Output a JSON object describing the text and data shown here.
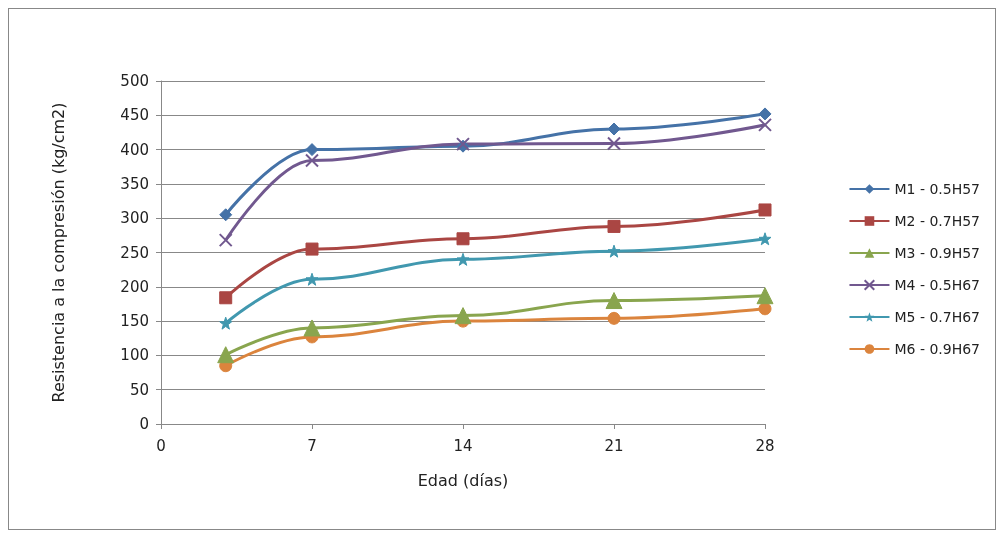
{
  "chart_data": {
    "type": "line",
    "xlabel": "Edad (días)",
    "ylabel": "Resistencia a la compresión (kg/cm2)",
    "x": [
      3,
      7,
      14,
      21,
      28
    ],
    "xlim": [
      0,
      28
    ],
    "xticks": [
      0,
      7,
      14,
      21,
      28
    ],
    "ylim": [
      0,
      500
    ],
    "yticks": [
      0,
      50,
      100,
      150,
      200,
      250,
      300,
      350,
      400,
      450,
      500
    ],
    "grid": "y",
    "legend": "right",
    "series": [
      {
        "name": "M1 - 0.5H57",
        "color": "#4572a7",
        "marker": "diamond",
        "values": [
          305,
          400,
          405,
          430,
          452
        ]
      },
      {
        "name": "M2 - 0.7H57",
        "color": "#aa4643",
        "marker": "square",
        "values": [
          184,
          255,
          270,
          288,
          312
        ]
      },
      {
        "name": "M3 - 0.9H57",
        "color": "#89a54e",
        "marker": "triangle",
        "values": [
          101,
          140,
          158,
          180,
          187
        ]
      },
      {
        "name": "M4 - 0.5H67",
        "color": "#71588f",
        "marker": "cross",
        "values": [
          268,
          384,
          408,
          409,
          436
        ]
      },
      {
        "name": "M5 - 0.7H67",
        "color": "#4198af",
        "marker": "star",
        "values": [
          147,
          211,
          240,
          252,
          270
        ]
      },
      {
        "name": "M6 - 0.9H67",
        "color": "#db843d",
        "marker": "circle",
        "values": [
          85,
          127,
          150,
          154,
          168
        ]
      }
    ]
  }
}
